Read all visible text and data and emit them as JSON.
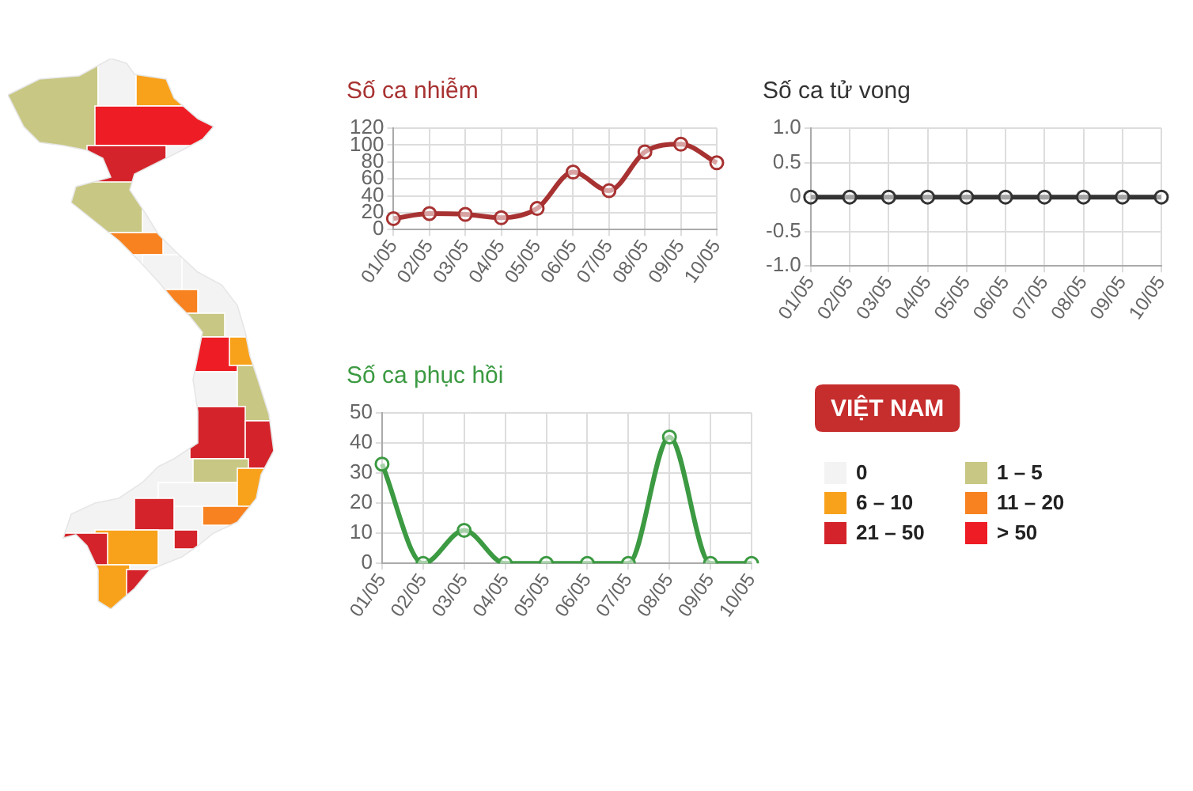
{
  "chart_data": [
    {
      "type": "line",
      "title": "Số ca nhiễm",
      "categories": [
        "01/05",
        "02/05",
        "03/05",
        "04/05",
        "05/05",
        "06/05",
        "07/05",
        "08/05",
        "09/05",
        "10/05"
      ],
      "values": [
        13,
        19,
        18,
        14,
        25,
        68,
        46,
        92,
        101,
        79
      ],
      "color": "#a83232",
      "ylim": [
        0,
        120
      ],
      "yticks": [
        0,
        20,
        40,
        60,
        80,
        100,
        120
      ],
      "grid": true,
      "marker": "circle"
    },
    {
      "type": "line",
      "title": "Số ca tử vong",
      "categories": [
        "01/05",
        "02/05",
        "03/05",
        "04/05",
        "05/05",
        "06/05",
        "07/05",
        "08/05",
        "09/05",
        "10/05"
      ],
      "values": [
        0,
        0,
        0,
        0,
        0,
        0,
        0,
        0,
        0,
        0
      ],
      "color": "#333333",
      "ylim": [
        -1,
        1
      ],
      "yticks": [
        {
          "value": -1,
          "label": "-1.0"
        },
        {
          "value": -0.5,
          "label": "-0.5"
        },
        0,
        {
          "value": 0.5,
          "label": "0.5"
        },
        {
          "value": 1,
          "label": "1.0"
        }
      ],
      "grid": true,
      "marker": "circle"
    },
    {
      "type": "line",
      "title": "Số ca phục hồi",
      "categories": [
        "01/05",
        "02/05",
        "03/05",
        "04/05",
        "05/05",
        "06/05",
        "07/05",
        "08/05",
        "09/05",
        "10/05"
      ],
      "values": [
        33,
        0,
        11,
        0,
        0,
        0,
        0,
        42,
        0,
        0
      ],
      "color": "#3c9a42",
      "ylim": [
        0,
        50
      ],
      "yticks": [
        0,
        10,
        20,
        30,
        40,
        50
      ],
      "grid": true,
      "marker": "circle"
    },
    {
      "type": "other",
      "title": "VIỆT NAM",
      "categories": [
        "0",
        "1 – 5",
        "6 – 10",
        "11 – 20",
        "21 – 50",
        "> 50"
      ],
      "colors": [
        "#f3f3f3",
        "#c8c783",
        "#f8a11b",
        "#f7821f",
        "#d4232a",
        "#ee1c24"
      ]
    }
  ]
}
